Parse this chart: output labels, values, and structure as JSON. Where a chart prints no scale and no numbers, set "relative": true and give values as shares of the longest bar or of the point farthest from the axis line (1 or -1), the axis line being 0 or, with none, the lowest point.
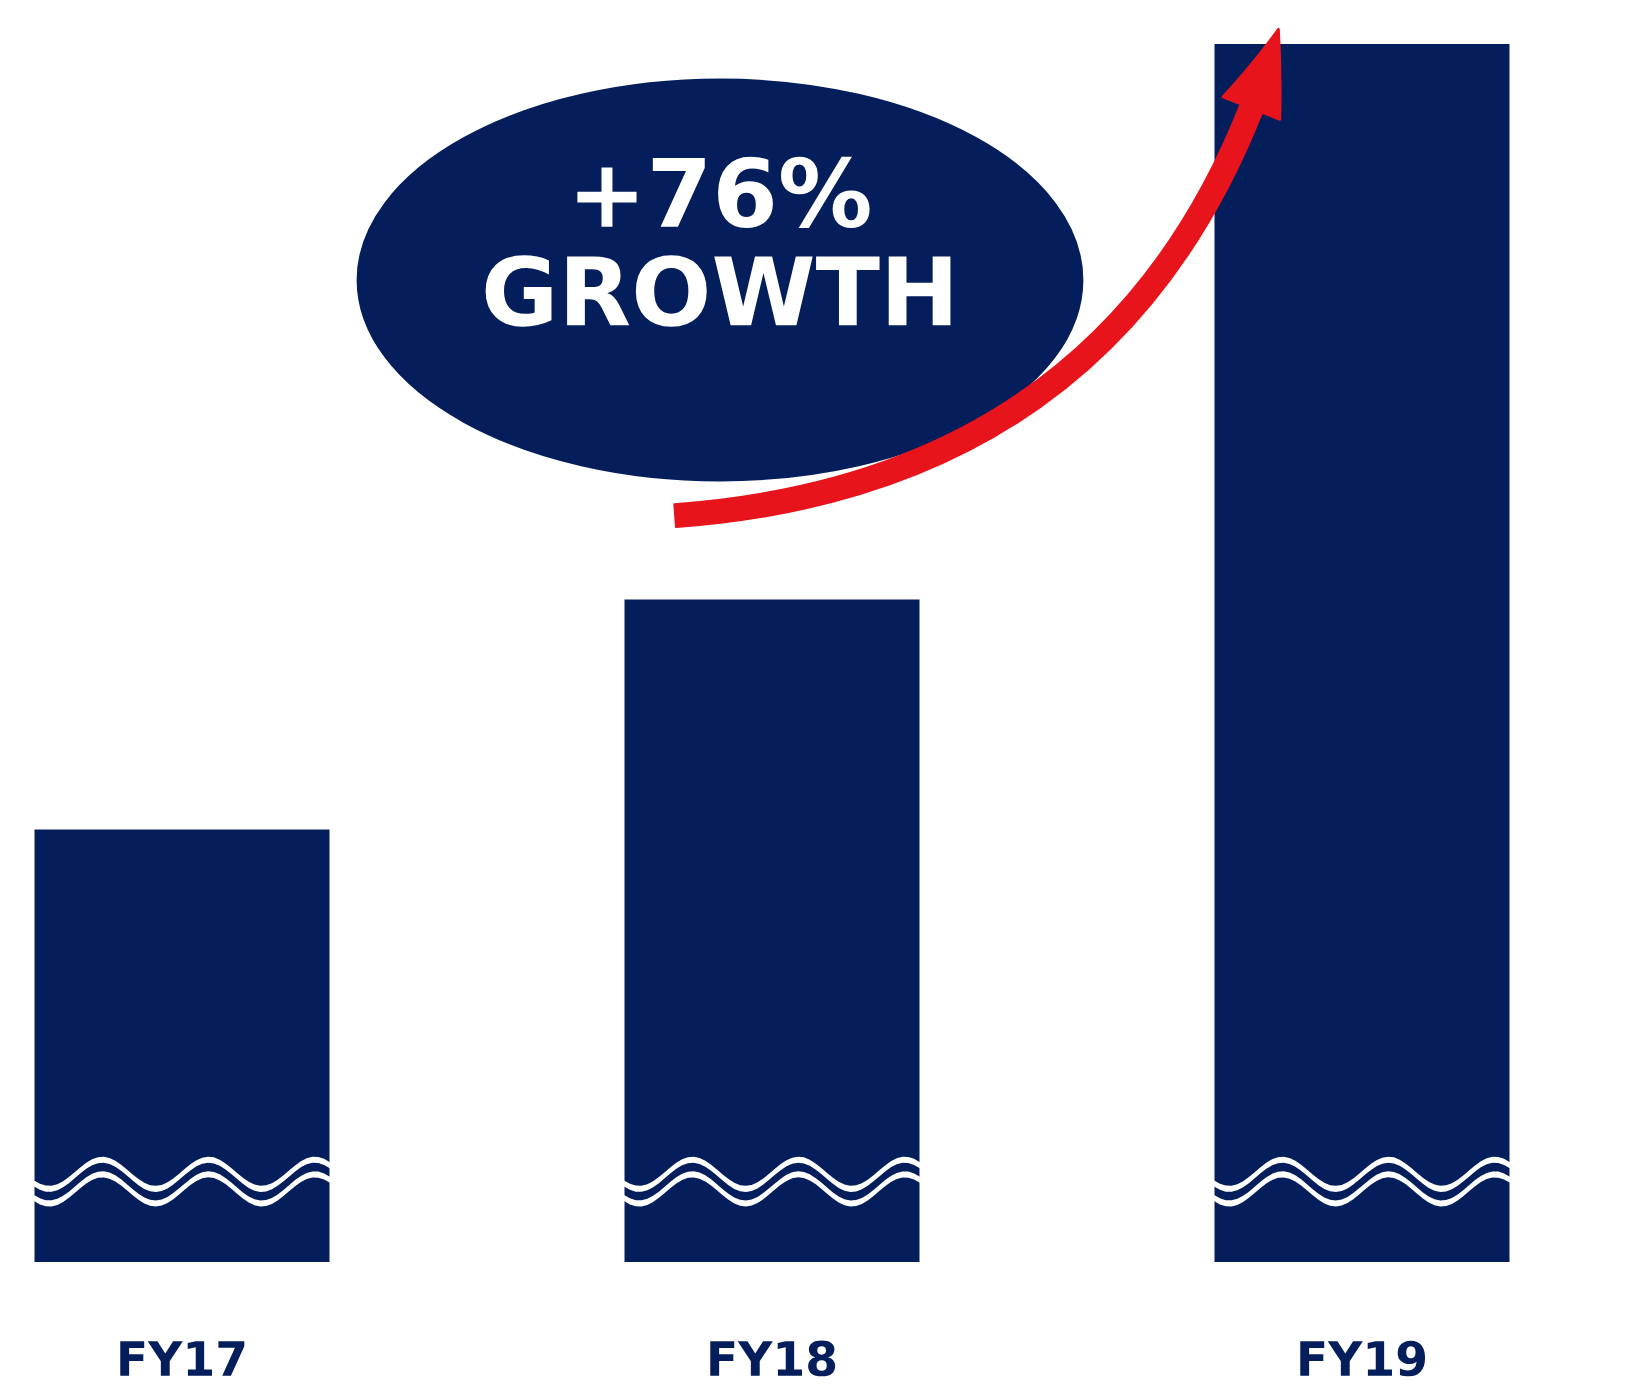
{
  "chart_data": {
    "type": "bar",
    "relative": true,
    "categories": [
      "FY17",
      "FY18",
      "FY19"
    ],
    "values": [
      0.355,
      0.544,
      1.0
    ],
    "color": "#041e5c",
    "annotations": [
      "+76%\nGROWTH"
    ],
    "grid": false
  }
}
